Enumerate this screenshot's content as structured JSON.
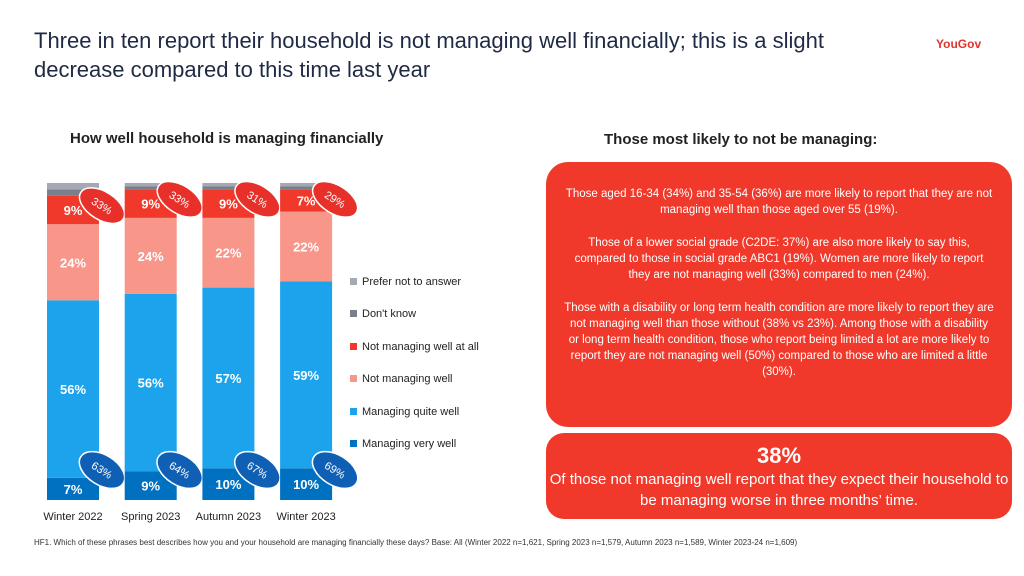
{
  "title": "Three in ten report their household is not managing well financially; this is a slight decrease compared to this time last year",
  "logo": "YouGov",
  "chart_data": {
    "type": "bar",
    "stacked": true,
    "title": "How well household is managing financially",
    "categories": [
      "Winter 2022",
      "Spring 2023",
      "Autumn 2023",
      "Winter 2023"
    ],
    "series": [
      {
        "name": "Managing very well",
        "color": "#0070c0",
        "values": [
          7,
          9,
          10,
          10
        ]
      },
      {
        "name": "Managing quite well",
        "color": "#1ca3ec",
        "values": [
          56,
          56,
          57,
          59
        ]
      },
      {
        "name": "Not managing well",
        "color": "#f8968a",
        "values": [
          24,
          24,
          22,
          22
        ]
      },
      {
        "name": "Not managing well at all",
        "color": "#f0392b",
        "values": [
          9,
          9,
          9,
          7
        ]
      },
      {
        "name": "Don't know",
        "color": "#7a7f8c",
        "values": [
          2,
          1,
          1,
          1
        ]
      },
      {
        "name": "Prefer not to answer",
        "color": "#a5a9b3",
        "values": [
          2,
          1,
          1,
          1
        ]
      }
    ],
    "managing_totals": {
      "labels": [
        "63%",
        "64%",
        "67%",
        "69%"
      ],
      "color": "#0f5fb5"
    },
    "not_managing_totals": {
      "labels": [
        "33%",
        "33%",
        "31%",
        "29%"
      ],
      "color": "#e8302a"
    },
    "legend": [
      "Prefer not to answer",
      "Don't know",
      "Not managing well at all",
      "Not managing well",
      "Managing quite well",
      "Managing very well"
    ],
    "legend_position": "right",
    "grid": false
  },
  "right_panel": {
    "heading": "Those most likely to not be managing:",
    "paragraphs": [
      "Those aged 16-34 (34%) and 35-54 (36%) are more likely to report that they are not managing well than those aged over 55 (19%).",
      "Those of a lower social grade (C2DE: 37%) are also more likely to say this, compared to those in social grade ABC1 (19%). Women are more likely to report they are not managing well (33%) compared to men (24%).",
      "Those with a disability or long term health condition are more likely to report they are not managing well than those without (38% vs 23%). Among those with a disability or long term health condition, those who report being limited a lot are more likely to report they are not managing well (50%) compared to those who are limited a little (30%)."
    ],
    "stat_value": "38%",
    "stat_text": "Of those not managing well report that they expect their household to be managing worse in three months’ time.",
    "color": "#f0392b"
  },
  "footnote": "HF1. Which of these phrases best describes how you and your household are managing financially these days? Base: All (Winter 2022 n=1,621, Spring 2023 n=1,579, Autumn 2023 n=1,589, Winter 2023-24 n=1,609)"
}
